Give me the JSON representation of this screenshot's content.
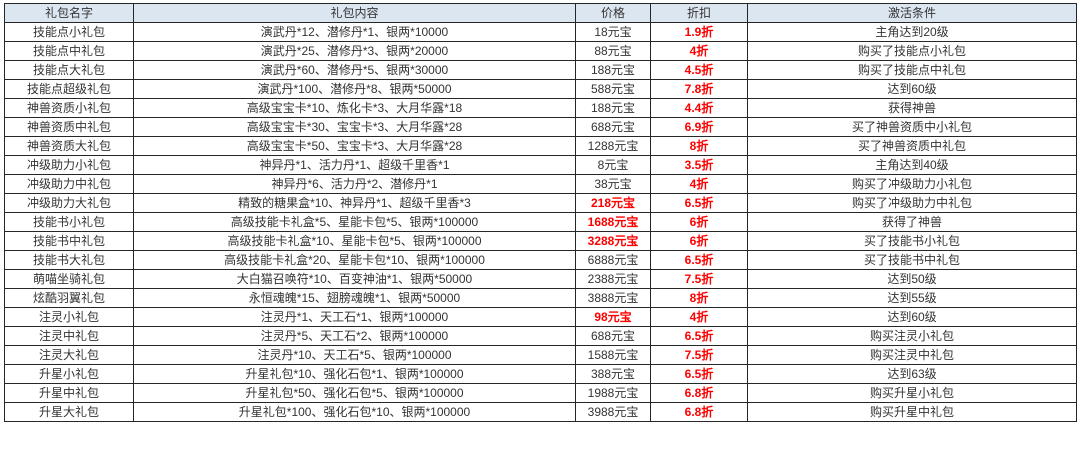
{
  "table": {
    "columns": [
      {
        "key": "name",
        "label": "礼包名字"
      },
      {
        "key": "content",
        "label": "礼包内容"
      },
      {
        "key": "price",
        "label": "价格"
      },
      {
        "key": "discount",
        "label": "折扣"
      },
      {
        "key": "condition",
        "label": "激活条件"
      }
    ],
    "colors": {
      "header_bg": "#dce6f1",
      "border": "#262626",
      "text": "#333333",
      "accent_red": "#fe0000"
    },
    "rows": [
      {
        "name": "技能点小礼包",
        "content": "演武丹*12、潜修丹*1、银两*10000",
        "price": "18元宝",
        "price_red": false,
        "discount": "1.9折",
        "condition": "主角达到20级"
      },
      {
        "name": "技能点中礼包",
        "content": "演武丹*25、潜修丹*3、银两*20000",
        "price": "88元宝",
        "price_red": false,
        "discount": "4折",
        "condition": "购买了技能点小礼包"
      },
      {
        "name": "技能点大礼包",
        "content": "演武丹*60、潜修丹*5、银两*30000",
        "price": "188元宝",
        "price_red": false,
        "discount": "4.5折",
        "condition": "购买了技能点中礼包"
      },
      {
        "name": "技能点超级礼包",
        "content": "演武丹*100、潜修丹*8、银两*50000",
        "price": "588元宝",
        "price_red": false,
        "discount": "7.8折",
        "condition": "达到60级"
      },
      {
        "name": "神兽资质小礼包",
        "content": "高级宝宝卡*10、炼化卡*3、大月华露*18",
        "price": "188元宝",
        "price_red": false,
        "discount": "4.4折",
        "condition": "获得神兽"
      },
      {
        "name": "神兽资质中礼包",
        "content": "高级宝宝卡*30、宝宝卡*3、大月华露*28",
        "price": "688元宝",
        "price_red": false,
        "discount": "6.9折",
        "condition": "买了神兽资质中小礼包"
      },
      {
        "name": "神兽资质大礼包",
        "content": "高级宝宝卡*50、宝宝卡*3、大月华露*28",
        "price": "1288元宝",
        "price_red": false,
        "discount": "8折",
        "condition": "买了神兽资质中礼包"
      },
      {
        "name": "冲级助力小礼包",
        "content": "神异丹*1、活力丹*1、超级千里香*1",
        "price": "8元宝",
        "price_red": false,
        "discount": "3.5折",
        "condition": "主角达到40级"
      },
      {
        "name": "冲级助力中礼包",
        "content": "神异丹*6、活力丹*2、潜修丹*1",
        "price": "38元宝",
        "price_red": false,
        "discount": "4折",
        "condition": "购买了冲级助力小礼包"
      },
      {
        "name": "冲级助力大礼包",
        "content": "精致的糖果盒*10、神异丹*1、超级千里香*3",
        "price": "218元宝",
        "price_red": true,
        "discount": "6.5折",
        "condition": "购买了冲级助力中礼包"
      },
      {
        "name": "技能书小礼包",
        "content": "高级技能卡礼盒*5、星能卡包*5、银两*100000",
        "price": "1688元宝",
        "price_red": true,
        "discount": "6折",
        "condition": "获得了神兽"
      },
      {
        "name": "技能书中礼包",
        "content": "高级技能卡礼盒*10、星能卡包*5、银两*100000",
        "price": "3288元宝",
        "price_red": true,
        "discount": "6折",
        "condition": "买了技能书小礼包"
      },
      {
        "name": "技能书大礼包",
        "content": "高级技能卡礼盒*20、星能卡包*10、银两*100000",
        "price": "6888元宝",
        "price_red": false,
        "discount": "6.5折",
        "condition": "买了技能书中礼包"
      },
      {
        "name": "萌喵坐骑礼包",
        "content": "大白猫召唤符*10、百变神油*1、银两*50000",
        "price": "2388元宝",
        "price_red": false,
        "discount": "7.5折",
        "condition": "达到50级"
      },
      {
        "name": "炫酷羽翼礼包",
        "content": "永恒魂魄*15、翅膀魂魄*1、银两*50000",
        "price": "3888元宝",
        "price_red": false,
        "discount": "8折",
        "condition": "达到55级"
      },
      {
        "name": "注灵小礼包",
        "content": "注灵丹*1、天工石*1、银两*100000",
        "price": "98元宝",
        "price_red": true,
        "discount": "4折",
        "condition": "达到60级"
      },
      {
        "name": "注灵中礼包",
        "content": "注灵丹*5、天工石*2、银两*100000",
        "price": "688元宝",
        "price_red": false,
        "discount": "6.5折",
        "condition": "购买注灵小礼包"
      },
      {
        "name": "注灵大礼包",
        "content": "注灵丹*10、天工石*5、银两*100000",
        "price": "1588元宝",
        "price_red": false,
        "discount": "7.5折",
        "condition": "购买注灵中礼包"
      },
      {
        "name": "升星小礼包",
        "content": "升星礼包*10、强化石包*1、银两*100000",
        "price": "388元宝",
        "price_red": false,
        "discount": "6.5折",
        "condition": "达到63级"
      },
      {
        "name": "升星中礼包",
        "content": "升星礼包*50、强化石包*5、银两*100000",
        "price": "1988元宝",
        "price_red": false,
        "discount": "6.8折",
        "condition": "购买升星小礼包"
      },
      {
        "name": "升星大礼包",
        "content": "升星礼包*100、强化石包*10、银两*100000",
        "price": "3988元宝",
        "price_red": false,
        "discount": "6.8折",
        "condition": "购买升星中礼包"
      }
    ]
  }
}
